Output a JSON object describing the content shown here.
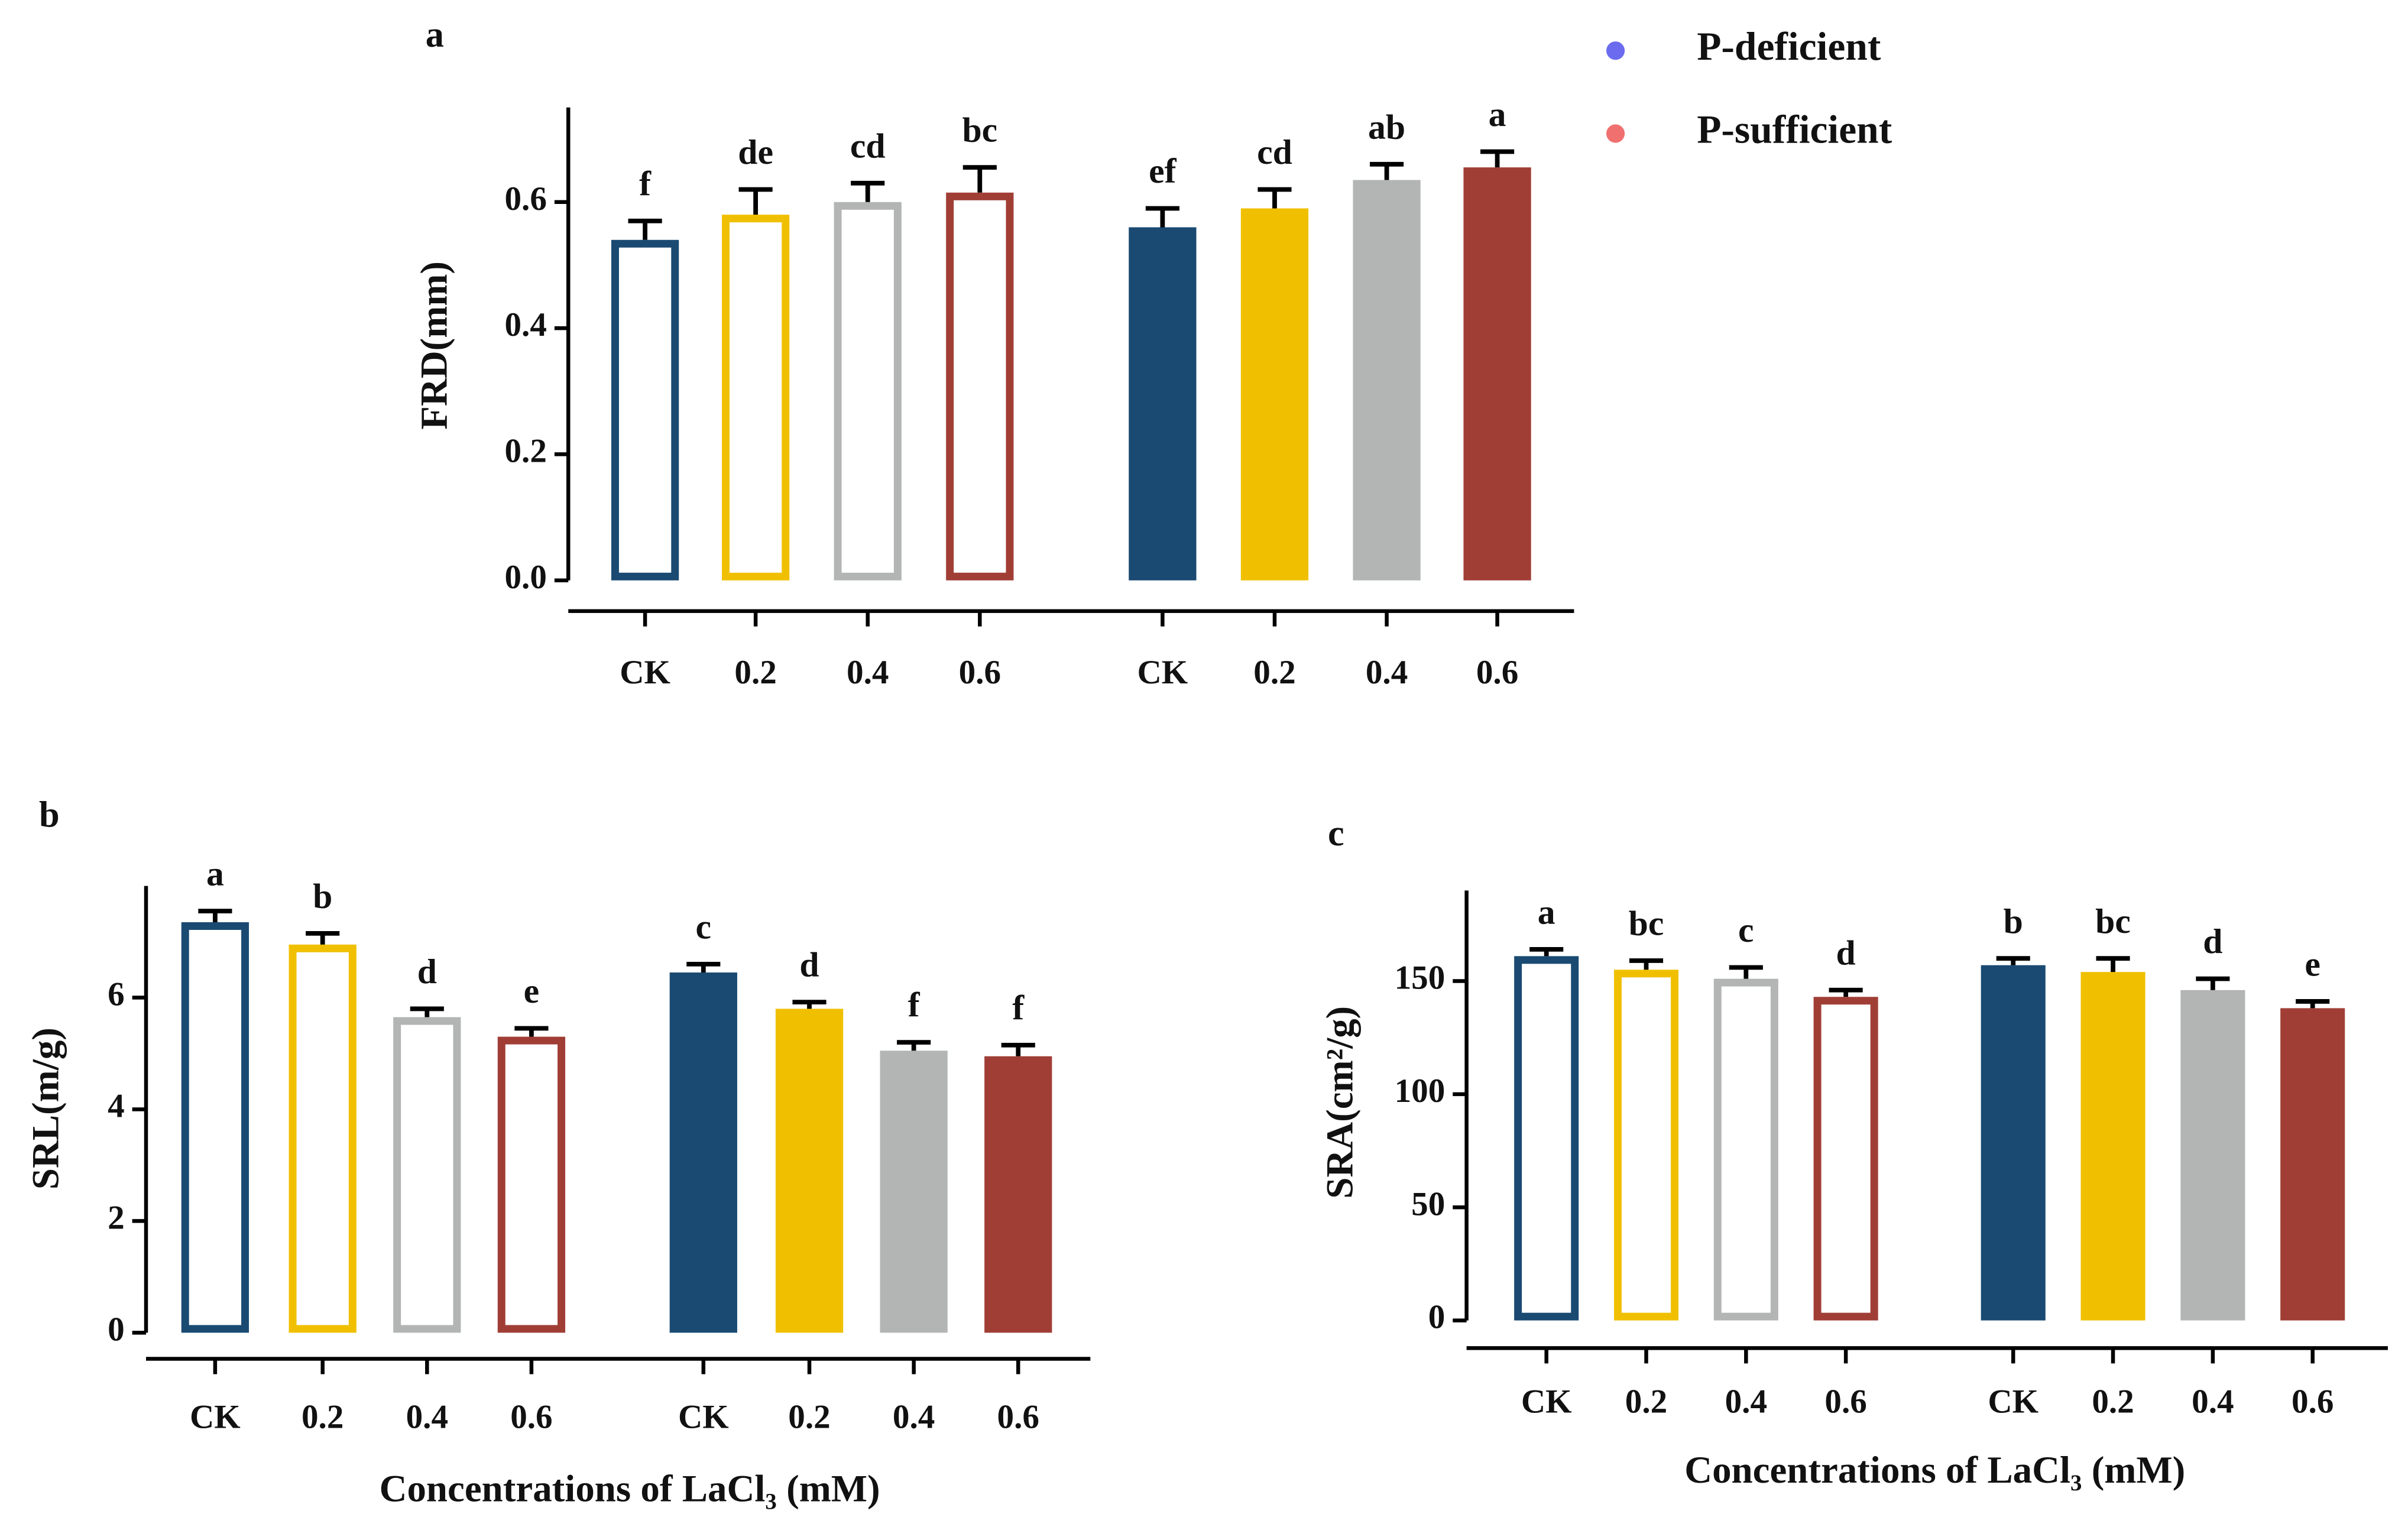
{
  "chart_data": [
    {
      "type": "bar",
      "title": "a",
      "ylabel": "FRD(mm)",
      "categories": [
        "CK",
        "0.2",
        "0.4",
        "0.6"
      ],
      "bar_colors": [
        "#1a4a72",
        "#f0c000",
        "#b3b5b4",
        "#a03e36"
      ],
      "series": [
        {
          "name": "P-deficient",
          "color": "#6b6bf0",
          "style": "outline",
          "values": [
            0.54,
            0.58,
            0.6,
            0.615
          ],
          "errors": [
            0.03,
            0.04,
            0.03,
            0.04
          ],
          "labels": [
            "f",
            "de",
            "cd",
            "bc"
          ]
        },
        {
          "name": "P-sufficient",
          "color": "#f07070",
          "style": "filled",
          "values": [
            0.56,
            0.59,
            0.635,
            0.655
          ],
          "errors": [
            0.03,
            0.03,
            0.025,
            0.025
          ],
          "labels": [
            "ef",
            "cd",
            "ab",
            "a"
          ]
        }
      ],
      "ylim": [
        0,
        0.75
      ],
      "yticks": [
        {
          "value": 0,
          "label": "0.0"
        },
        0.2,
        0.4,
        0.6
      ],
      "legend": "top-right"
    },
    {
      "type": "bar",
      "title": "b",
      "ylabel": "SRL(m/g)",
      "xlabel": "Concentrations of LaCl₃ (mM)",
      "categories": [
        "CK",
        "0.2",
        "0.4",
        "0.6"
      ],
      "bar_colors": [
        "#1a4a72",
        "#f0c000",
        "#b3b5b4",
        "#a03e36"
      ],
      "series": [
        {
          "name": "P-deficient",
          "color": "#6b6bf0",
          "style": "outline",
          "values": [
            7.35,
            6.95,
            5.65,
            5.3
          ],
          "errors": [
            0.2,
            0.2,
            0.15,
            0.15
          ],
          "labels": [
            "a",
            "b",
            "d",
            "e"
          ]
        },
        {
          "name": "P-sufficient",
          "color": "#f07070",
          "style": "filled",
          "values": [
            6.45,
            5.8,
            5.05,
            4.95
          ],
          "errors": [
            0.15,
            0.12,
            0.15,
            0.2
          ],
          "labels": [
            "c",
            "d",
            "f",
            "f"
          ]
        }
      ],
      "ylim": [
        0,
        8
      ],
      "yticks": [
        0,
        2,
        4,
        6
      ]
    },
    {
      "type": "bar",
      "title": "c",
      "ylabel": "SRA(cm²/g)",
      "xlabel": "Concentrations of LaCl₃ (mM)",
      "categories": [
        "CK",
        "0.2",
        "0.4",
        "0.6"
      ],
      "bar_colors": [
        "#1a4a72",
        "#f0c000",
        "#b3b5b4",
        "#a03e36"
      ],
      "series": [
        {
          "name": "P-deficient",
          "color": "#6b6bf0",
          "style": "outline",
          "values": [
            161,
            155,
            151,
            143
          ],
          "errors": [
            3,
            4,
            5,
            3
          ],
          "labels": [
            "a",
            "bc",
            "c",
            "d"
          ]
        },
        {
          "name": "P-sufficient",
          "color": "#f07070",
          "style": "filled",
          "values": [
            157,
            154,
            146,
            138
          ],
          "errors": [
            3,
            6,
            5,
            3
          ],
          "labels": [
            "b",
            "bc",
            "d",
            "e"
          ]
        }
      ],
      "ylim": [
        0,
        190
      ],
      "yticks": [
        0,
        50,
        100,
        150
      ]
    }
  ]
}
